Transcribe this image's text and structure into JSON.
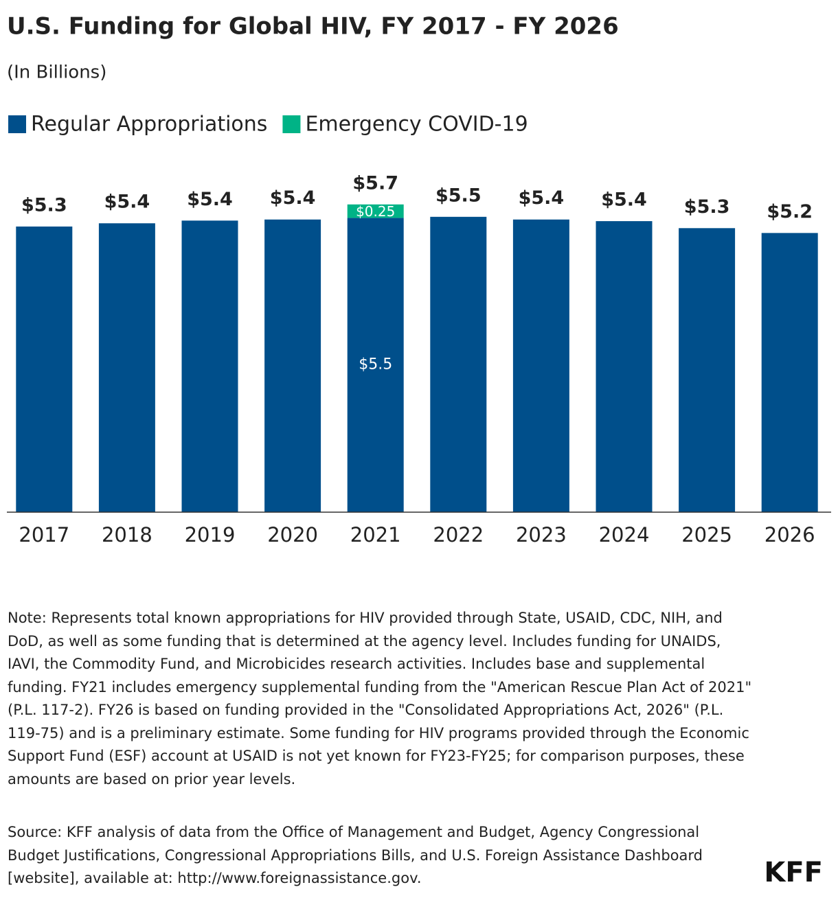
{
  "chart_data": {
    "type": "stacked-bar",
    "title": "U.S. Funding for Global HIV, FY 2017 - FY 2026",
    "subtitle": "(In Billions)",
    "categories": [
      "2017",
      "2018",
      "2019",
      "2020",
      "2021",
      "2022",
      "2023",
      "2024",
      "2025",
      "2026"
    ],
    "series": [
      {
        "name": "Regular Appropriations",
        "color": "#004f8b",
        "values": [
          5.3,
          5.36,
          5.41,
          5.43,
          5.46,
          5.48,
          5.43,
          5.4,
          5.27,
          5.18
        ],
        "value_labels": [
          "$5.3",
          "$5.4",
          "$5.4",
          "$5.4",
          "$5.5",
          "$5.5",
          "$5.4",
          "$5.4",
          "$5.3",
          "$5.2"
        ]
      },
      {
        "name": "Emergency COVID-19",
        "color": "#00b386",
        "values": [
          null,
          null,
          null,
          null,
          0.25,
          null,
          null,
          null,
          null,
          null
        ],
        "value_labels": [
          null,
          null,
          null,
          null,
          "$0.25",
          null,
          null,
          null,
          null,
          null
        ]
      }
    ],
    "totals": [
      null,
      null,
      null,
      null,
      5.71,
      null,
      null,
      null,
      null,
      null
    ],
    "total_labels": [
      null,
      null,
      null,
      null,
      "$5.7",
      null,
      null,
      null,
      null,
      null
    ],
    "ylim": [
      0,
      6
    ],
    "note": "Note: Represents total known appropriations for HIV provided through State, USAID, CDC, NIH, and DoD, as well as some funding that is determined at the agency level. Includes funding for UNAIDS, IAVI, the Commodity Fund, and Microbicides research activities. Includes base and supplemental funding. FY21 includes emergency supplemental funding from the \"American Rescue Plan Act of 2021\" (P.L. 117-2). FY26 is based on funding provided in the \"Consolidated Appropriations Act, 2026\" (P.L. 119-75) and is a preliminary estimate. Some funding for HIV programs provided through the Economic Support Fund (ESF) account at USAID is not yet known for FY23-FY25; for comparison purposes, these amounts are based on prior year levels.",
    "source": "Source: KFF analysis of data from the Office of Management and Budget, Agency Congressional Budget Justifications, Congressional Appropriations Bills, and U.S. Foreign Assistance Dashboard [website], available at: http://www.foreignassistance.gov.",
    "logo": "KFF"
  }
}
